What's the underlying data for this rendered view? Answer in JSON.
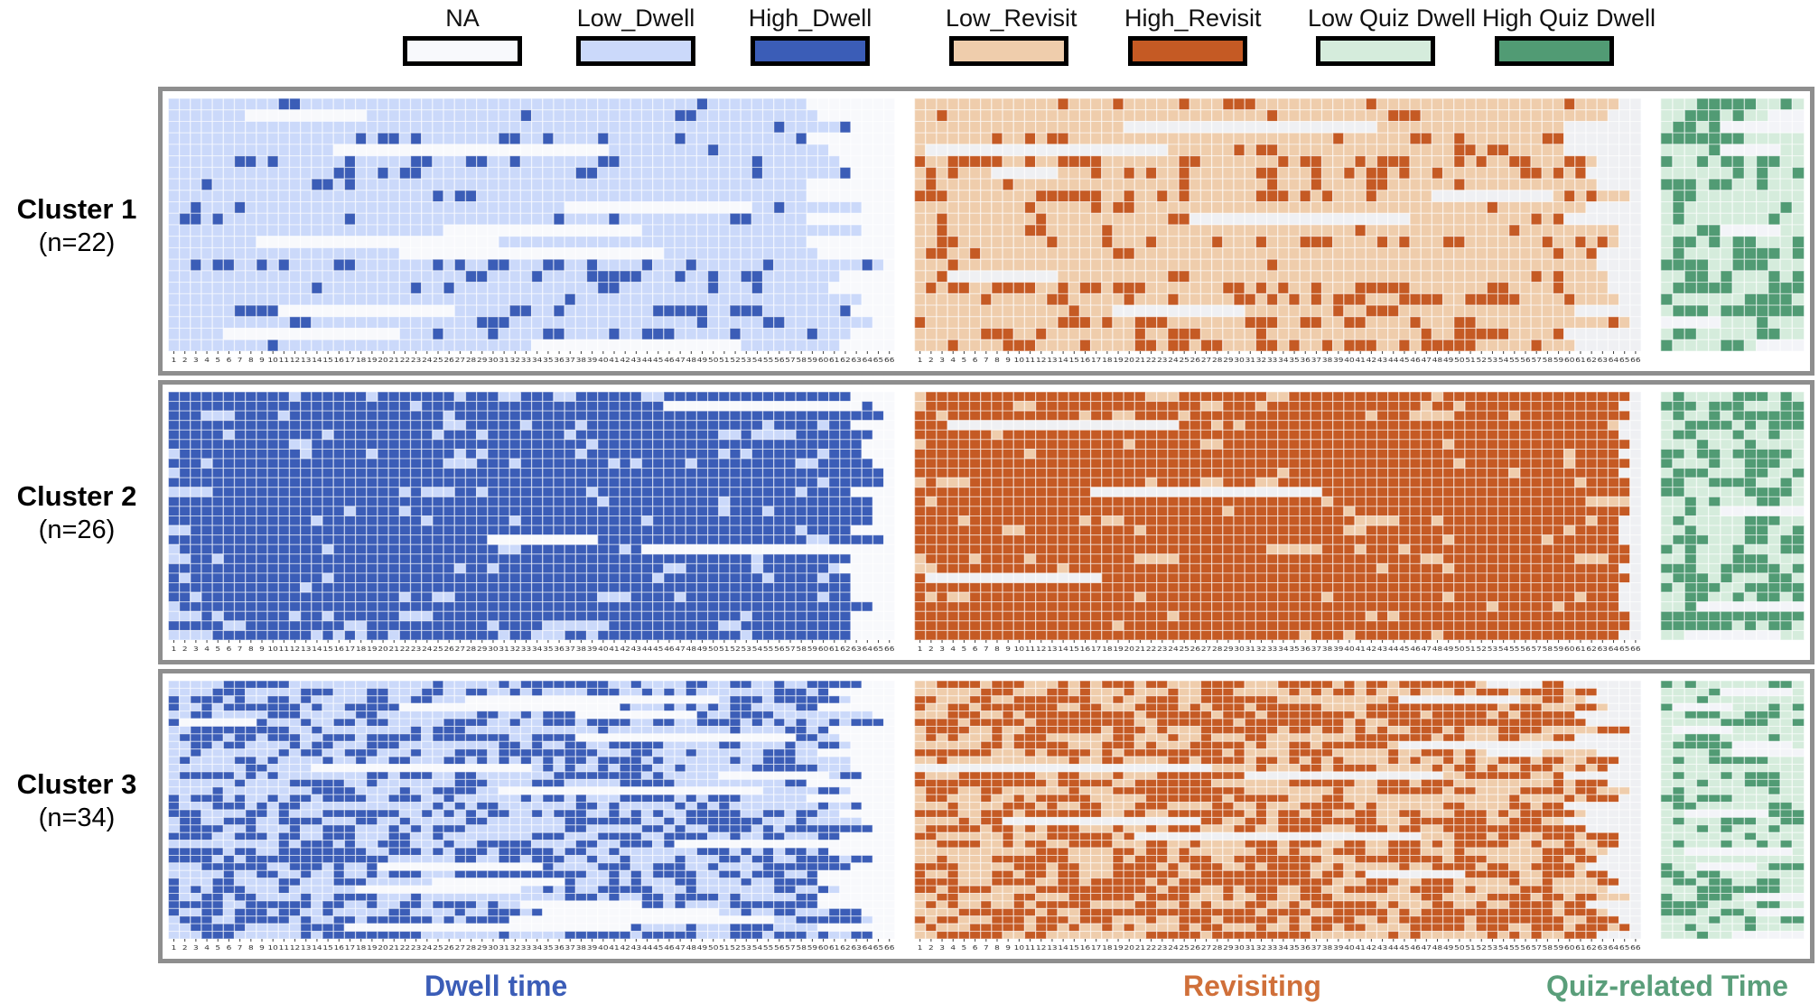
{
  "legend": [
    {
      "label": "NA",
      "color": "#f8f9fc"
    },
    {
      "label": "Low_Dwell",
      "color": "#cbd9fa"
    },
    {
      "label": "High_Dwell",
      "color": "#3b5db7"
    },
    {
      "label": "Low_Revisit",
      "color": "#efcdac"
    },
    {
      "label": "High_Revisit",
      "color": "#c55a24"
    },
    {
      "label": "Low Quiz Dwell",
      "color": "#d5ecdc"
    },
    {
      "label": "High Quiz Dwell",
      "color": "#519b74"
    }
  ],
  "colors": {
    "dwell": {
      "na": "#f8f9fc",
      "low": "#cbd9fa",
      "high": "#3b5db7"
    },
    "revisit": {
      "na": "#eff0f3",
      "low": "#efcdac",
      "high": "#c55a24"
    },
    "quiz": {
      "na": "#f3f4f8",
      "low": "#d5ecdc",
      "high": "#519b74"
    },
    "panel_border": "#8e8e8e"
  },
  "clusters": [
    {
      "name": "Cluster 1",
      "n_label": "(n=22)"
    },
    {
      "name": "Cluster 2",
      "n_label": "(n=26)"
    },
    {
      "name": "Cluster 3",
      "n_label": "(n=34)"
    }
  ],
  "bottom_titles": {
    "dwell": {
      "text": "Dwell time",
      "color": "#3b5db7"
    },
    "revisit": {
      "text": "Revisiting",
      "color": "#d0703a"
    },
    "quiz": {
      "text": "Quiz-related Time",
      "color": "#5a9e7a"
    }
  },
  "chart_data": {
    "type": "heatmap",
    "title": "",
    "category_codes": {
      "0": "NA",
      "1": "Low",
      "2": "High"
    },
    "x_ticks_dwell": [
      "1",
      "2",
      "3",
      "4",
      "5",
      "6",
      "7",
      "8",
      "9",
      "10",
      "11",
      "12",
      "13",
      "14",
      "15",
      "16",
      "17",
      "18",
      "19",
      "20",
      "21",
      "22",
      "23",
      "24",
      "25",
      "26",
      "27",
      "28",
      "29",
      "30",
      "31",
      "32",
      "33",
      "34",
      "35",
      "36",
      "37",
      "38",
      "39",
      "40",
      "41",
      "42",
      "43",
      "44",
      "45",
      "46",
      "47",
      "48",
      "49",
      "50",
      "51",
      "52",
      "53",
      "54",
      "55",
      "56",
      "57",
      "58",
      "59",
      "60",
      "61",
      "62",
      "63",
      "64",
      "65",
      "66"
    ],
    "x_ticks_revisit": [
      "1",
      "2",
      "3",
      "4",
      "5",
      "6",
      "7",
      "8",
      "9",
      "10",
      "11",
      "12",
      "13",
      "14",
      "15",
      "16",
      "17",
      "18",
      "19",
      "20",
      "21",
      "22",
      "23",
      "24",
      "25",
      "26",
      "27",
      "28",
      "29",
      "30",
      "31",
      "32",
      "33",
      "34",
      "35",
      "36",
      "37",
      "38",
      "39",
      "40",
      "41",
      "42",
      "43",
      "44",
      "45",
      "46",
      "47",
      "48",
      "49",
      "50",
      "51",
      "52",
      "53",
      "54",
      "55",
      "56",
      "57",
      "58",
      "59",
      "60",
      "61",
      "62",
      "63",
      "64",
      "65",
      "66"
    ],
    "panels": [
      {
        "cluster": "Cluster 1",
        "rows": 22,
        "dwell_cols": 66,
        "revisit_cols": 66,
        "quiz_cols": 12,
        "profile": {
          "dwell_high": 0.14,
          "revisit_high": 0.22,
          "quiz_high": 0.4,
          "na_rate": 0.18
        }
      },
      {
        "cluster": "Cluster 2",
        "rows": 26,
        "dwell_cols": 66,
        "revisit_cols": 66,
        "quiz_cols": 12,
        "profile": {
          "dwell_high": 0.82,
          "revisit_high": 0.88,
          "quiz_high": 0.5,
          "na_rate": 0.04
        }
      },
      {
        "cluster": "Cluster 3",
        "rows": 34,
        "dwell_cols": 66,
        "revisit_cols": 66,
        "quiz_cols": 12,
        "profile": {
          "dwell_high": 0.42,
          "revisit_high": 0.55,
          "quiz_high": 0.38,
          "na_rate": 0.2
        }
      }
    ]
  }
}
